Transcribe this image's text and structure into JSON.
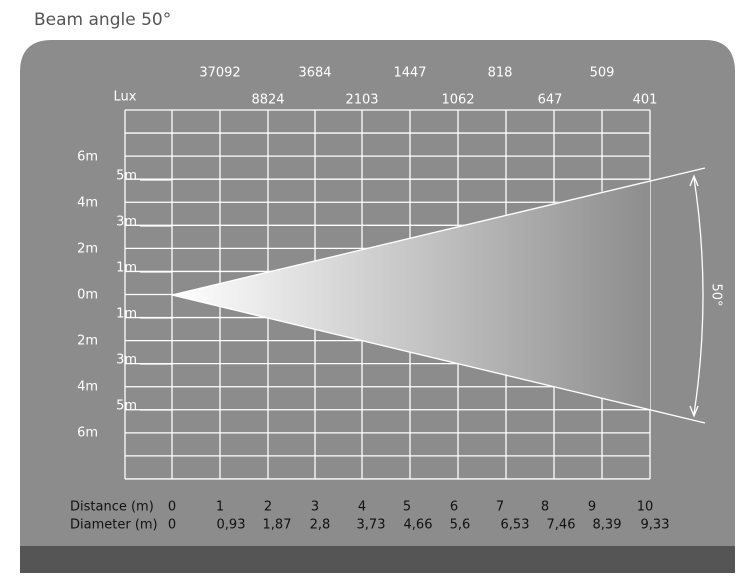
{
  "title": "Beam angle 50°",
  "lux": {
    "label": "Lux",
    "top_row": [
      "37092",
      "3684",
      "1447",
      "818",
      "509"
    ],
    "bottom_row": [
      "8824",
      "2103",
      "1062",
      "647",
      "401"
    ]
  },
  "outer_scale": [
    "6m",
    "4m",
    "2m",
    "0m",
    "2m",
    "4m",
    "6m"
  ],
  "inner_scale": [
    "5m",
    "3m",
    "1m",
    "1m",
    "3m",
    "5m"
  ],
  "beam_label": "50°",
  "distance": {
    "label": "Distance (m)",
    "values": [
      "0",
      "1",
      "2",
      "3",
      "4",
      "5",
      "6",
      "7",
      "8",
      "9",
      "10"
    ]
  },
  "diameter": {
    "label": "Diameter (m)",
    "values": [
      "0",
      "0,93",
      "1,87",
      "2,8",
      "3,73",
      "4,66",
      "5,6",
      "6,53",
      "7,46",
      "8,39",
      "9,33"
    ]
  }
}
